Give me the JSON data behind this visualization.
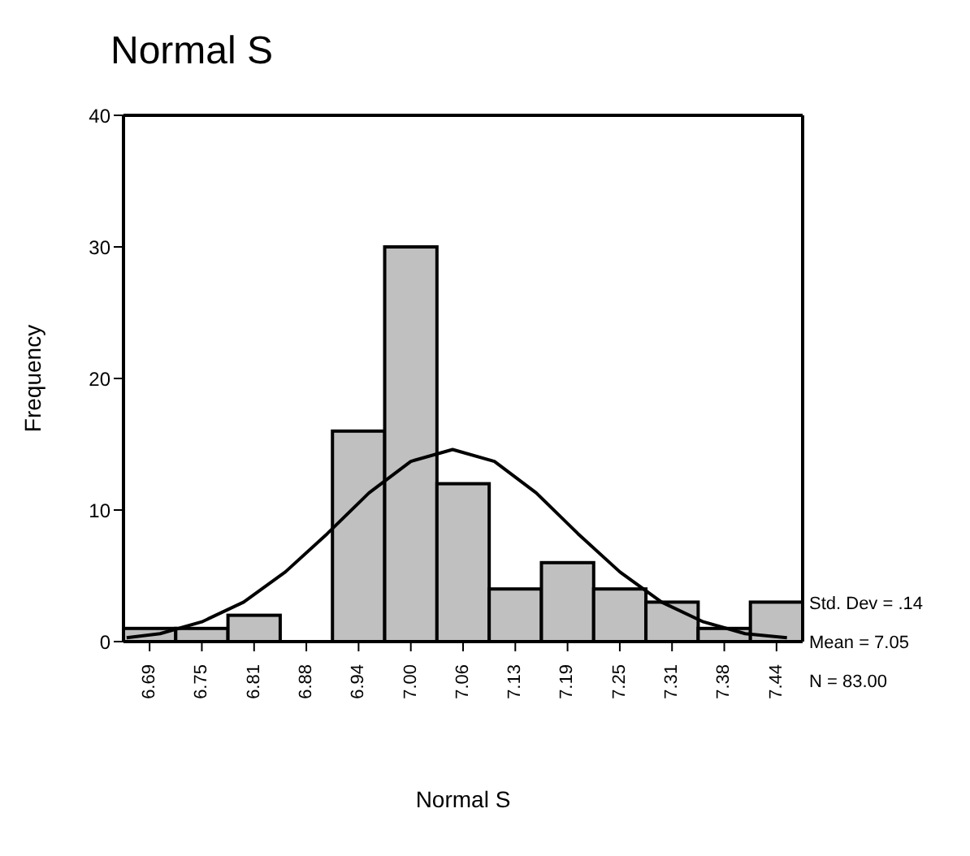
{
  "chart_data": {
    "type": "histogram",
    "title": "Normal S",
    "xlabel": "Normal S",
    "ylabel": "Frequency",
    "bins": [
      6.65625,
      6.71875,
      6.78125,
      6.84375,
      6.90625,
      6.96875,
      7.03125,
      7.09375,
      7.15625,
      7.21875,
      7.28125,
      7.34375,
      7.40625,
      7.46875
    ],
    "values": [
      1,
      1,
      2,
      0,
      16,
      30,
      12,
      4,
      6,
      4,
      3,
      1,
      3
    ],
    "color": "#c0c0c0",
    "series": [
      {
        "type": "line",
        "color": "#000000",
        "x": [
          6.66,
          6.7,
          6.75,
          6.8,
          6.85,
          6.9,
          6.95,
          7.0,
          7.05,
          7.1,
          7.15,
          7.2,
          7.25,
          7.3,
          7.35,
          7.4,
          7.45
        ],
        "values": [
          0.3,
          0.6,
          1.5,
          3,
          5.3,
          8.2,
          11.3,
          13.7,
          14.6,
          13.7,
          11.3,
          8.2,
          5.3,
          3,
          1.5,
          0.6,
          0.3
        ]
      }
    ],
    "xlim": [
      6.65625,
      7.46875
    ],
    "xticks": [
      {
        "value": 6.6875,
        "label": "6.69"
      },
      {
        "value": 6.75,
        "label": "6.75"
      },
      {
        "value": 6.8125,
        "label": "6.81"
      },
      {
        "value": 6.875,
        "label": "6.88"
      },
      {
        "value": 6.9375,
        "label": "6.94"
      },
      {
        "value": 7.0,
        "label": "7.00"
      },
      {
        "value": 7.0625,
        "label": "7.06"
      },
      {
        "value": 7.125,
        "label": "7.13"
      },
      {
        "value": 7.1875,
        "label": "7.19"
      },
      {
        "value": 7.25,
        "label": "7.25"
      },
      {
        "value": 7.3125,
        "label": "7.31"
      },
      {
        "value": 7.375,
        "label": "7.38"
      },
      {
        "value": 7.4375,
        "label": "7.44"
      }
    ],
    "ylim": [
      0,
      40
    ],
    "yticks": [
      0,
      10,
      20,
      30,
      40
    ],
    "annotations": [
      "Std. Dev = .14",
      "Mean = 7.05",
      "N = 83.00"
    ]
  }
}
